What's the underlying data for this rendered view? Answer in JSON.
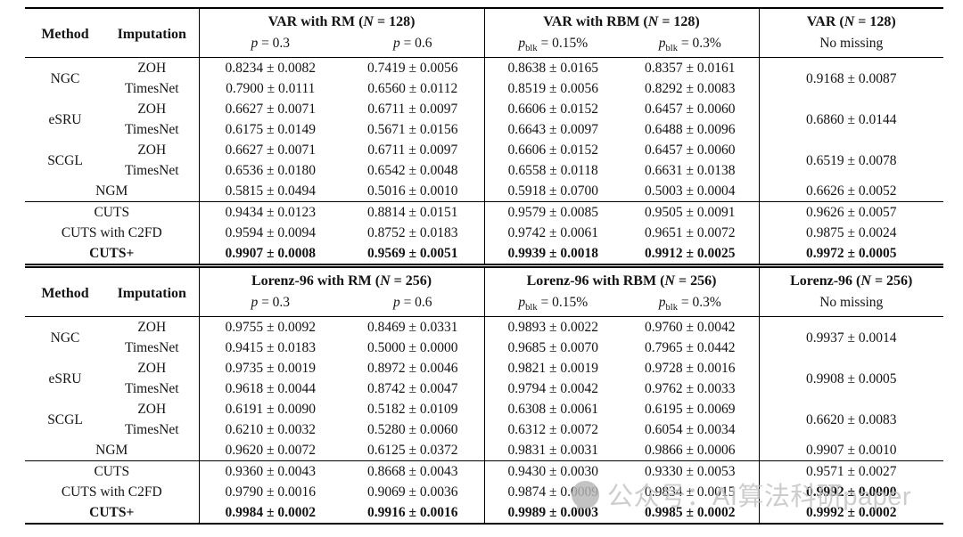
{
  "watermark": {
    "text": "公众号：AI算法科研paper",
    "icon": "chat-bubble-icon",
    "color": "#c3c3c3"
  },
  "tables": [
    {
      "header": {
        "method": "Method",
        "imputation": "Imputation",
        "groups": [
          {
            "title": "VAR with RM",
            "open": " (",
            "n_sym": "N",
            "n_rest": " = 128)",
            "cols": [
              {
                "sym": "p",
                "sub": "",
                "eq": " = 0.3"
              },
              {
                "sym": "p",
                "sub": "",
                "eq": " = 0.6"
              }
            ]
          },
          {
            "title": "VAR with RBM",
            "open": " (",
            "n_sym": "N",
            "n_rest": " = 128)",
            "cols": [
              {
                "sym": "p",
                "sub": "blk",
                "eq": " = 0.15%"
              },
              {
                "sym": "p",
                "sub": "blk",
                "eq": " = 0.3%"
              }
            ]
          },
          {
            "title": "VAR",
            "open": " (",
            "n_sym": "N",
            "n_rest": " = 128)",
            "single": "No missing"
          }
        ]
      },
      "method_blocks": [
        {
          "method": "NGC",
          "rows": [
            {
              "imputation": "ZOH",
              "cells": [
                "0.8234 ± 0.0082",
                "0.7419 ± 0.0056",
                "0.8638 ± 0.0165",
                "0.8357 ± 0.0161"
              ]
            },
            {
              "imputation": "TimesNet",
              "cells": [
                "0.7900 ± 0.0111",
                "0.6560 ± 0.0112",
                "0.8519 ± 0.0056",
                "0.8292 ± 0.0083"
              ]
            }
          ],
          "no_missing": "0.9168 ± 0.0087"
        },
        {
          "method": "eSRU",
          "rows": [
            {
              "imputation": "ZOH",
              "cells": [
                "0.6627 ± 0.0071",
                "0.6711 ± 0.0097",
                "0.6606 ± 0.0152",
                "0.6457 ± 0.0060"
              ]
            },
            {
              "imputation": "TimesNet",
              "cells": [
                "0.6175 ± 0.0149",
                "0.5671 ± 0.0156",
                "0.6643 ± 0.0097",
                "0.6488 ± 0.0096"
              ]
            }
          ],
          "no_missing": "0.6860 ± 0.0144"
        },
        {
          "method": "SCGL",
          "rows": [
            {
              "imputation": "ZOH",
              "cells": [
                "0.6627 ± 0.0071",
                "0.6711 ± 0.0097",
                "0.6606 ± 0.0152",
                "0.6457 ± 0.0060"
              ]
            },
            {
              "imputation": "TimesNet",
              "cells": [
                "0.6536 ± 0.0180",
                "0.6542 ± 0.0048",
                "0.6558 ± 0.0118",
                "0.6631 ± 0.0138"
              ]
            }
          ],
          "no_missing": "0.6519 ± 0.0078"
        }
      ],
      "ngm_row": {
        "label": "NGM",
        "cells": [
          "0.5815 ± 0.0494",
          "0.5016 ± 0.0010",
          "0.5918 ± 0.0700",
          "0.5003 ± 0.0004"
        ],
        "no_missing": "0.6626 ± 0.0052"
      },
      "cuts_rows": [
        {
          "label": "CUTS",
          "bold": false,
          "cells": [
            "0.9434 ± 0.0123",
            "0.8814 ± 0.0151",
            "0.9579 ± 0.0085",
            "0.9505 ± 0.0091"
          ],
          "no_missing": "0.9626 ± 0.0057",
          "no_missing_bold": false
        },
        {
          "label": "CUTS with C2FD",
          "bold": false,
          "cells": [
            "0.9594 ± 0.0094",
            "0.8752 ± 0.0183",
            "0.9742 ± 0.0061",
            "0.9651 ± 0.0072"
          ],
          "no_missing": "0.9875 ± 0.0024",
          "no_missing_bold": false
        },
        {
          "label": "CUTS+",
          "bold": true,
          "cells": [
            "0.9907 ± 0.0008",
            "0.9569 ± 0.0051",
            "0.9939 ± 0.0018",
            "0.9912 ± 0.0025"
          ],
          "no_missing": "0.9972 ± 0.0005",
          "no_missing_bold": true
        }
      ]
    },
    {
      "header": {
        "method": "Method",
        "imputation": "Imputation",
        "groups": [
          {
            "title": "Lorenz-96 with RM",
            "open": " (",
            "n_sym": "N",
            "n_rest": " = 256)",
            "cols": [
              {
                "sym": "p",
                "sub": "",
                "eq": " = 0.3"
              },
              {
                "sym": "p",
                "sub": "",
                "eq": " = 0.6"
              }
            ]
          },
          {
            "title": "Lorenz-96 with RBM",
            "open": " (",
            "n_sym": "N",
            "n_rest": " = 256)",
            "cols": [
              {
                "sym": "p",
                "sub": "blk",
                "eq": " = 0.15%"
              },
              {
                "sym": "p",
                "sub": "blk",
                "eq": " = 0.3%"
              }
            ]
          },
          {
            "title": "Lorenz-96",
            "open": " (",
            "n_sym": "N",
            "n_rest": " = 256)",
            "single": "No missing"
          }
        ]
      },
      "method_blocks": [
        {
          "method": "NGC",
          "rows": [
            {
              "imputation": "ZOH",
              "cells": [
                "0.9755 ± 0.0092",
                "0.8469 ± 0.0331",
                "0.9893 ± 0.0022",
                "0.9760 ± 0.0042"
              ]
            },
            {
              "imputation": "TimesNet",
              "cells": [
                "0.9415 ± 0.0183",
                "0.5000 ± 0.0000",
                "0.9685 ± 0.0070",
                "0.7965 ± 0.0442"
              ]
            }
          ],
          "no_missing": "0.9937 ± 0.0014"
        },
        {
          "method": "eSRU",
          "rows": [
            {
              "imputation": "ZOH",
              "cells": [
                "0.9735 ± 0.0019",
                "0.8972 ± 0.0046",
                "0.9821 ± 0.0019",
                "0.9728 ± 0.0016"
              ]
            },
            {
              "imputation": "TimesNet",
              "cells": [
                "0.9618 ± 0.0044",
                "0.8742 ± 0.0047",
                "0.9794 ± 0.0042",
                "0.9762 ± 0.0033"
              ]
            }
          ],
          "no_missing": "0.9908 ± 0.0005"
        },
        {
          "method": "SCGL",
          "rows": [
            {
              "imputation": "ZOH",
              "cells": [
                "0.6191 ± 0.0090",
                "0.5182 ± 0.0109",
                "0.6308 ± 0.0061",
                "0.6195 ± 0.0069"
              ]
            },
            {
              "imputation": "TimesNet",
              "cells": [
                "0.6210 ± 0.0032",
                "0.5280 ± 0.0060",
                "0.6312 ± 0.0072",
                "0.6054 ± 0.0034"
              ]
            }
          ],
          "no_missing": "0.6620 ± 0.0083"
        }
      ],
      "ngm_row": {
        "label": "NGM",
        "cells": [
          "0.9620 ± 0.0072",
          "0.6125 ± 0.0372",
          "0.9831 ± 0.0031",
          "0.9866 ± 0.0006"
        ],
        "no_missing": "0.9907 ± 0.0010"
      },
      "cuts_rows": [
        {
          "label": "CUTS",
          "bold": false,
          "cells": [
            "0.9360 ± 0.0043",
            "0.8668 ± 0.0043",
            "0.9430 ± 0.0030",
            "0.9330 ± 0.0053"
          ],
          "no_missing": "0.9571 ± 0.0027",
          "no_missing_bold": false
        },
        {
          "label": "CUTS with C2FD",
          "bold": false,
          "cells": [
            "0.9790 ± 0.0016",
            "0.9069 ± 0.0036",
            "0.9874 ± 0.0009",
            "0.9834 ± 0.0015"
          ],
          "no_missing": "0.9992 ± 0.0000",
          "no_missing_bold": true
        },
        {
          "label": "CUTS+",
          "bold": true,
          "cells": [
            "0.9984 ± 0.0002",
            "0.9916 ± 0.0016",
            "0.9989 ± 0.0003",
            "0.9985 ± 0.0002"
          ],
          "no_missing": "0.9992 ± 0.0002",
          "no_missing_bold": true
        }
      ]
    }
  ]
}
